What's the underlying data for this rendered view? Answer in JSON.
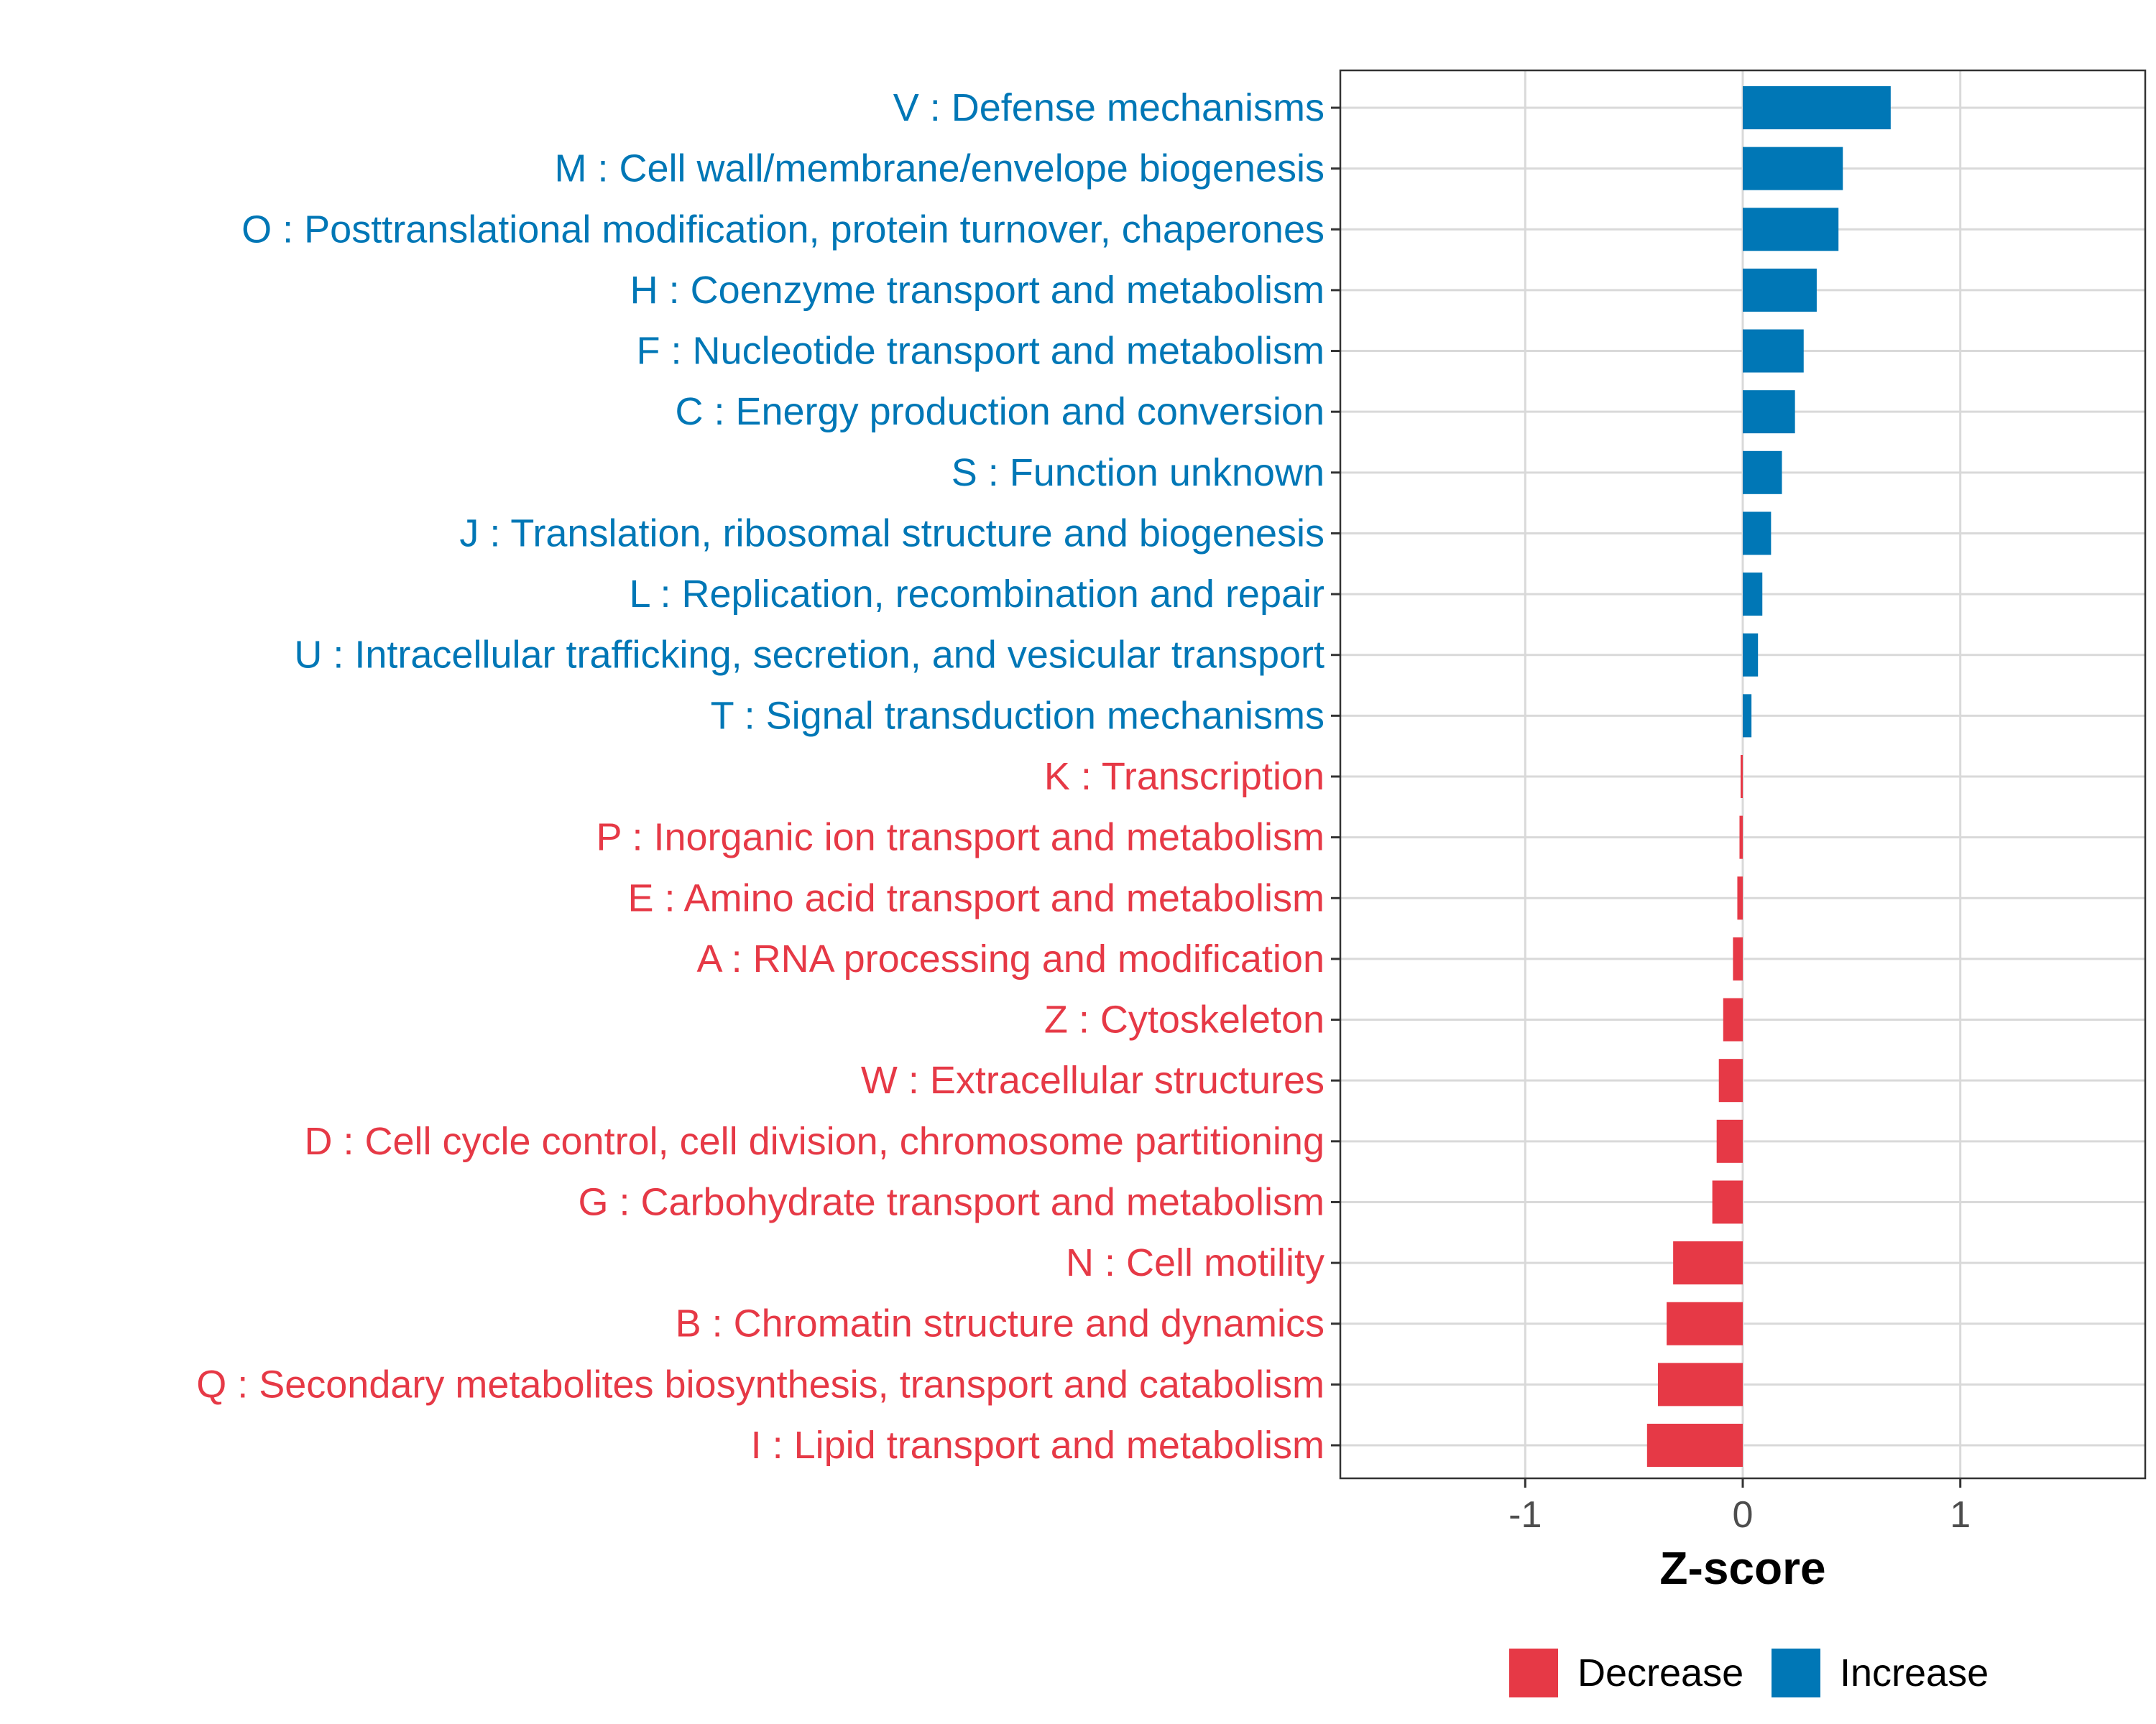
{
  "chart_data": {
    "type": "bar",
    "orientation": "horizontal",
    "title": "",
    "xlabel": "Z-score",
    "ylabel": "",
    "xlim": [
      -1.85,
      1.85
    ],
    "xticks": [
      {
        "value": -1,
        "label": "-1"
      },
      {
        "value": 0,
        "label": "0"
      },
      {
        "value": 1,
        "label": "1"
      }
    ],
    "grid": true,
    "legend_position": "bottom",
    "legend": [
      {
        "name": "Decrease",
        "color": "#E63946"
      },
      {
        "name": "Increase",
        "color": "#0077B6"
      }
    ],
    "categories": [
      {
        "label": "V : Defense mechanisms",
        "value": 0.68,
        "group": "Increase"
      },
      {
        "label": "M : Cell wall/membrane/envelope biogenesis",
        "value": 0.46,
        "group": "Increase"
      },
      {
        "label": "O : Posttranslational modification, protein turnover, chaperones",
        "value": 0.44,
        "group": "Increase"
      },
      {
        "label": "H : Coenzyme transport and metabolism",
        "value": 0.34,
        "group": "Increase"
      },
      {
        "label": "F : Nucleotide transport and metabolism",
        "value": 0.28,
        "group": "Increase"
      },
      {
        "label": "C : Energy production and conversion",
        "value": 0.24,
        "group": "Increase"
      },
      {
        "label": "S : Function unknown",
        "value": 0.18,
        "group": "Increase"
      },
      {
        "label": "J : Translation, ribosomal structure and biogenesis",
        "value": 0.13,
        "group": "Increase"
      },
      {
        "label": "L : Replication, recombination and repair",
        "value": 0.09,
        "group": "Increase"
      },
      {
        "label": "U : Intracellular trafficking, secretion, and vesicular transport",
        "value": 0.07,
        "group": "Increase"
      },
      {
        "label": "T : Signal transduction mechanisms",
        "value": 0.04,
        "group": "Increase"
      },
      {
        "label": "K : Transcription",
        "value": -0.01,
        "group": "Decrease"
      },
      {
        "label": "P : Inorganic ion transport and metabolism",
        "value": -0.015,
        "group": "Decrease"
      },
      {
        "label": "E : Amino acid transport and metabolism",
        "value": -0.025,
        "group": "Decrease"
      },
      {
        "label": "A : RNA processing and modification",
        "value": -0.045,
        "group": "Decrease"
      },
      {
        "label": "Z : Cytoskeleton",
        "value": -0.09,
        "group": "Decrease"
      },
      {
        "label": "W : Extracellular structures",
        "value": -0.11,
        "group": "Decrease"
      },
      {
        "label": "D : Cell cycle control, cell division, chromosome partitioning",
        "value": -0.12,
        "group": "Decrease"
      },
      {
        "label": "G : Carbohydrate transport and metabolism",
        "value": -0.14,
        "group": "Decrease"
      },
      {
        "label": "N : Cell motility",
        "value": -0.32,
        "group": "Decrease"
      },
      {
        "label": "B : Chromatin structure and dynamics",
        "value": -0.35,
        "group": "Decrease"
      },
      {
        "label": "Q : Secondary metabolites biosynthesis, transport and catabolism",
        "value": -0.39,
        "group": "Decrease"
      },
      {
        "label": "I : Lipid transport and metabolism",
        "value": -0.44,
        "group": "Decrease"
      }
    ]
  }
}
